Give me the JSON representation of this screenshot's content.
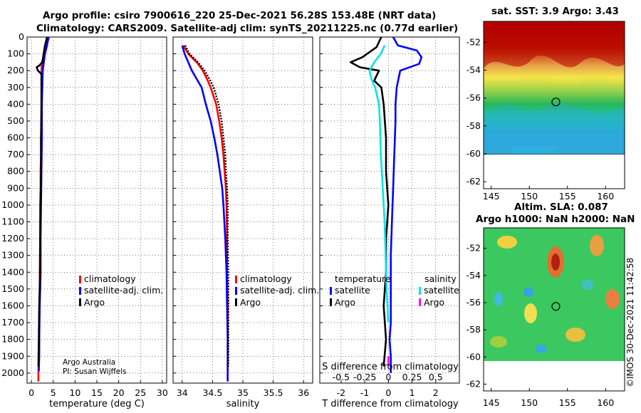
{
  "titles": {
    "main_line1": "Argo profile: csiro 7900616_220 25-Dec-2021 56.28S 153.48E (NRT data)",
    "main_line2": "Climatology: CARS2009. Satellite-adj clim: synTS_20211225.nc (0.77d earlier)",
    "sst": "sat. SST: 3.9 Argo: 3.43",
    "sla_line1": "Altim. SLA: 0.087",
    "sla_line2": "Argo h1000: NaN h2000: NaN"
  },
  "watermark": "©IMOS 30-Dec-2021 11:42:58",
  "credit": {
    "line1": "Argo Australia",
    "line2": "PI: Susan Wijffels"
  },
  "colors": {
    "climatology": "#ff0000",
    "satellite_adj": "#0000ff",
    "argo": "#000000",
    "sal_satellite": "#00e5e5",
    "sal_argo": "#ff00ff"
  },
  "chart_data": [
    {
      "type": "line",
      "title": "",
      "xlabel": "temperature (deg C)",
      "ylabel": "",
      "xlim": [
        -1,
        31
      ],
      "ylim": [
        2060,
        0
      ],
      "xticks": [
        0,
        5,
        10,
        15,
        20,
        25,
        30
      ],
      "yticks": [
        0,
        100,
        200,
        300,
        400,
        500,
        600,
        700,
        800,
        900,
        1000,
        1100,
        1200,
        1300,
        1400,
        1500,
        1600,
        1700,
        1800,
        1900,
        2000
      ],
      "legend": [
        "climatology",
        "satellite-adj. clim.",
        "Argo"
      ],
      "series": [
        {
          "name": "climatology",
          "x": [
            3.8,
            3.6,
            3.1,
            2.4,
            2.3,
            2.3,
            2.3,
            2.3,
            2.2,
            2.2,
            2.1,
            2.1,
            2.0,
            2.0,
            1.9,
            1.9,
            1.8,
            1.8,
            1.7,
            1.6,
            1.6
          ],
          "y": [
            0,
            50,
            100,
            150,
            200,
            300,
            400,
            500,
            600,
            700,
            800,
            900,
            1000,
            1200,
            1400,
            1500,
            1600,
            1800,
            1900,
            2000,
            2050
          ]
        },
        {
          "name": "satellite-adj. clim.",
          "x": [
            4.0,
            3.5,
            3.1,
            2.6,
            2.5,
            2.4,
            2.4,
            2.3,
            2.2,
            2.1,
            2.1,
            2.0,
            1.9,
            1.8,
            1.8,
            1.7
          ],
          "y": [
            0,
            50,
            100,
            200,
            300,
            400,
            600,
            800,
            1000,
            1200,
            1400,
            1500,
            1600,
            1800,
            1900,
            1990
          ]
        },
        {
          "name": "Argo",
          "x": [
            3.6,
            3.1,
            2.8,
            2.5,
            1.8,
            1.2,
            1.5,
            2.3,
            2.3,
            2.3,
            2.2,
            2.2,
            2.1,
            2.0,
            2.0,
            1.9,
            1.8,
            1.7,
            1.6
          ],
          "y": [
            0,
            50,
            100,
            150,
            170,
            180,
            200,
            220,
            300,
            400,
            600,
            800,
            1000,
            1200,
            1400,
            1500,
            1600,
            1800,
            1960
          ]
        }
      ]
    },
    {
      "type": "line",
      "xlabel": "salinity",
      "xlim": [
        33.85,
        36.15
      ],
      "ylim": [
        2060,
        0
      ],
      "xticks": [
        34,
        34.5,
        35,
        35.5,
        36
      ],
      "legend": [
        "climatology",
        "satellite-adj. clim.",
        "Argo"
      ],
      "series": [
        {
          "name": "climatology",
          "x": [
            34.02,
            34.1,
            34.24,
            34.34,
            34.41,
            34.47,
            34.56,
            34.61,
            34.65,
            34.68,
            34.7,
            34.72,
            34.73,
            34.74,
            34.74,
            34.75,
            34.75,
            34.75
          ],
          "y": [
            50,
            100,
            150,
            200,
            250,
            300,
            400,
            500,
            600,
            700,
            800,
            900,
            1000,
            1200,
            1400,
            1600,
            1800,
            2050
          ]
        },
        {
          "name": "satellite-adj. clim.",
          "x": [
            34.0,
            34.04,
            34.1,
            34.16,
            34.24,
            34.32,
            34.39,
            34.47,
            34.53,
            34.58,
            34.62,
            34.66,
            34.68,
            34.71,
            34.73,
            34.74,
            34.75,
            34.75
          ],
          "y": [
            50,
            100,
            150,
            200,
            250,
            300,
            400,
            500,
            600,
            700,
            800,
            900,
            1000,
            1200,
            1400,
            1600,
            1800,
            2050
          ]
        },
        {
          "name": "Argo",
          "x": [
            34.05,
            34.12,
            34.26,
            34.37,
            34.45,
            34.52,
            34.6,
            34.65,
            34.68,
            34.71,
            34.72,
            34.74,
            34.75,
            34.75,
            34.76,
            34.76,
            34.76,
            34.76
          ],
          "y": [
            50,
            100,
            150,
            200,
            250,
            300,
            400,
            500,
            600,
            700,
            800,
            900,
            1000,
            1200,
            1400,
            1600,
            1800,
            1960
          ]
        }
      ]
    },
    {
      "type": "line",
      "xlabel": "T difference from climatology",
      "xlabel_top": "S difference from climatology",
      "xlim": [
        -2.9,
        3.0
      ],
      "ylim": [
        2060,
        0
      ],
      "xticks": [
        -2,
        -1,
        0,
        1,
        2
      ],
      "top_xtick_labels": [
        "-0.5",
        "-0.25",
        "0",
        "0.25",
        "0.5"
      ],
      "top_xticks": [
        -0.5,
        -0.25,
        0,
        0.25,
        0.5
      ],
      "legend_left_title": "temperature",
      "legend_left": [
        "satellite",
        "Argo"
      ],
      "legend_right_title": "salinity",
      "legend_right": [
        "satellite",
        "Argo"
      ],
      "series": [
        {
          "name": "temperature satellite",
          "x": [
            0.2,
            0.4,
            1.2,
            1.4,
            1.3,
            0.5,
            0.35,
            0.3,
            0.3,
            0.25,
            0.2,
            0.15,
            0.1,
            0.1,
            0.1,
            0.05,
            0.1,
            0.1
          ],
          "y": [
            0,
            50,
            80,
            120,
            160,
            200,
            300,
            400,
            500,
            700,
            900,
            1100,
            1300,
            1500,
            1700,
            1800,
            1900,
            2000
          ]
        },
        {
          "name": "temperature Argo",
          "x": [
            -0.3,
            -0.5,
            -0.8,
            -1.1,
            -1.6,
            -1.2,
            -0.4,
            -0.6,
            -0.3,
            -0.2,
            -0.1,
            -0.1,
            0.0,
            -0.1,
            -0.1,
            -0.2,
            -0.1,
            -0.2
          ],
          "y": [
            0,
            60,
            90,
            120,
            150,
            180,
            200,
            260,
            300,
            400,
            600,
            800,
            1000,
            1200,
            1400,
            1600,
            1800,
            1960
          ]
        },
        {
          "name": "salinity satellite",
          "x": [
            -0.04,
            -0.08,
            -0.15,
            -0.2,
            -0.18,
            -0.14,
            -0.1,
            -0.09,
            -0.08,
            -0.06,
            -0.04,
            -0.03,
            -0.02,
            0.0
          ],
          "y": [
            50,
            100,
            150,
            200,
            250,
            300,
            400,
            500,
            700,
            900,
            1100,
            1300,
            1500,
            1700
          ]
        },
        {
          "name": "salinity Argo",
          "x": [
            0.0,
            0.0
          ],
          "y": [
            1900,
            1960
          ]
        }
      ]
    },
    {
      "type": "heatmap",
      "title": "sat. SST: 3.9 Argo: 3.43",
      "xlim": [
        144,
        162.5
      ],
      "ylim": [
        -62.5,
        -50.5
      ],
      "xticks": [
        145,
        150,
        155,
        160
      ],
      "yticks": [
        -52,
        -54,
        -56,
        -58,
        -60,
        -62
      ],
      "marker": {
        "lon": 153.48,
        "lat": -56.28
      }
    },
    {
      "type": "heatmap",
      "title": "Altim. SLA: 0.087",
      "xlim": [
        144,
        162.5
      ],
      "ylim": [
        -62.5,
        -50.5
      ],
      "xticks": [
        145,
        150,
        155,
        160
      ],
      "yticks": [
        -52,
        -54,
        -56,
        -58,
        -60,
        -62
      ],
      "marker": {
        "lon": 153.48,
        "lat": -56.28
      }
    }
  ]
}
